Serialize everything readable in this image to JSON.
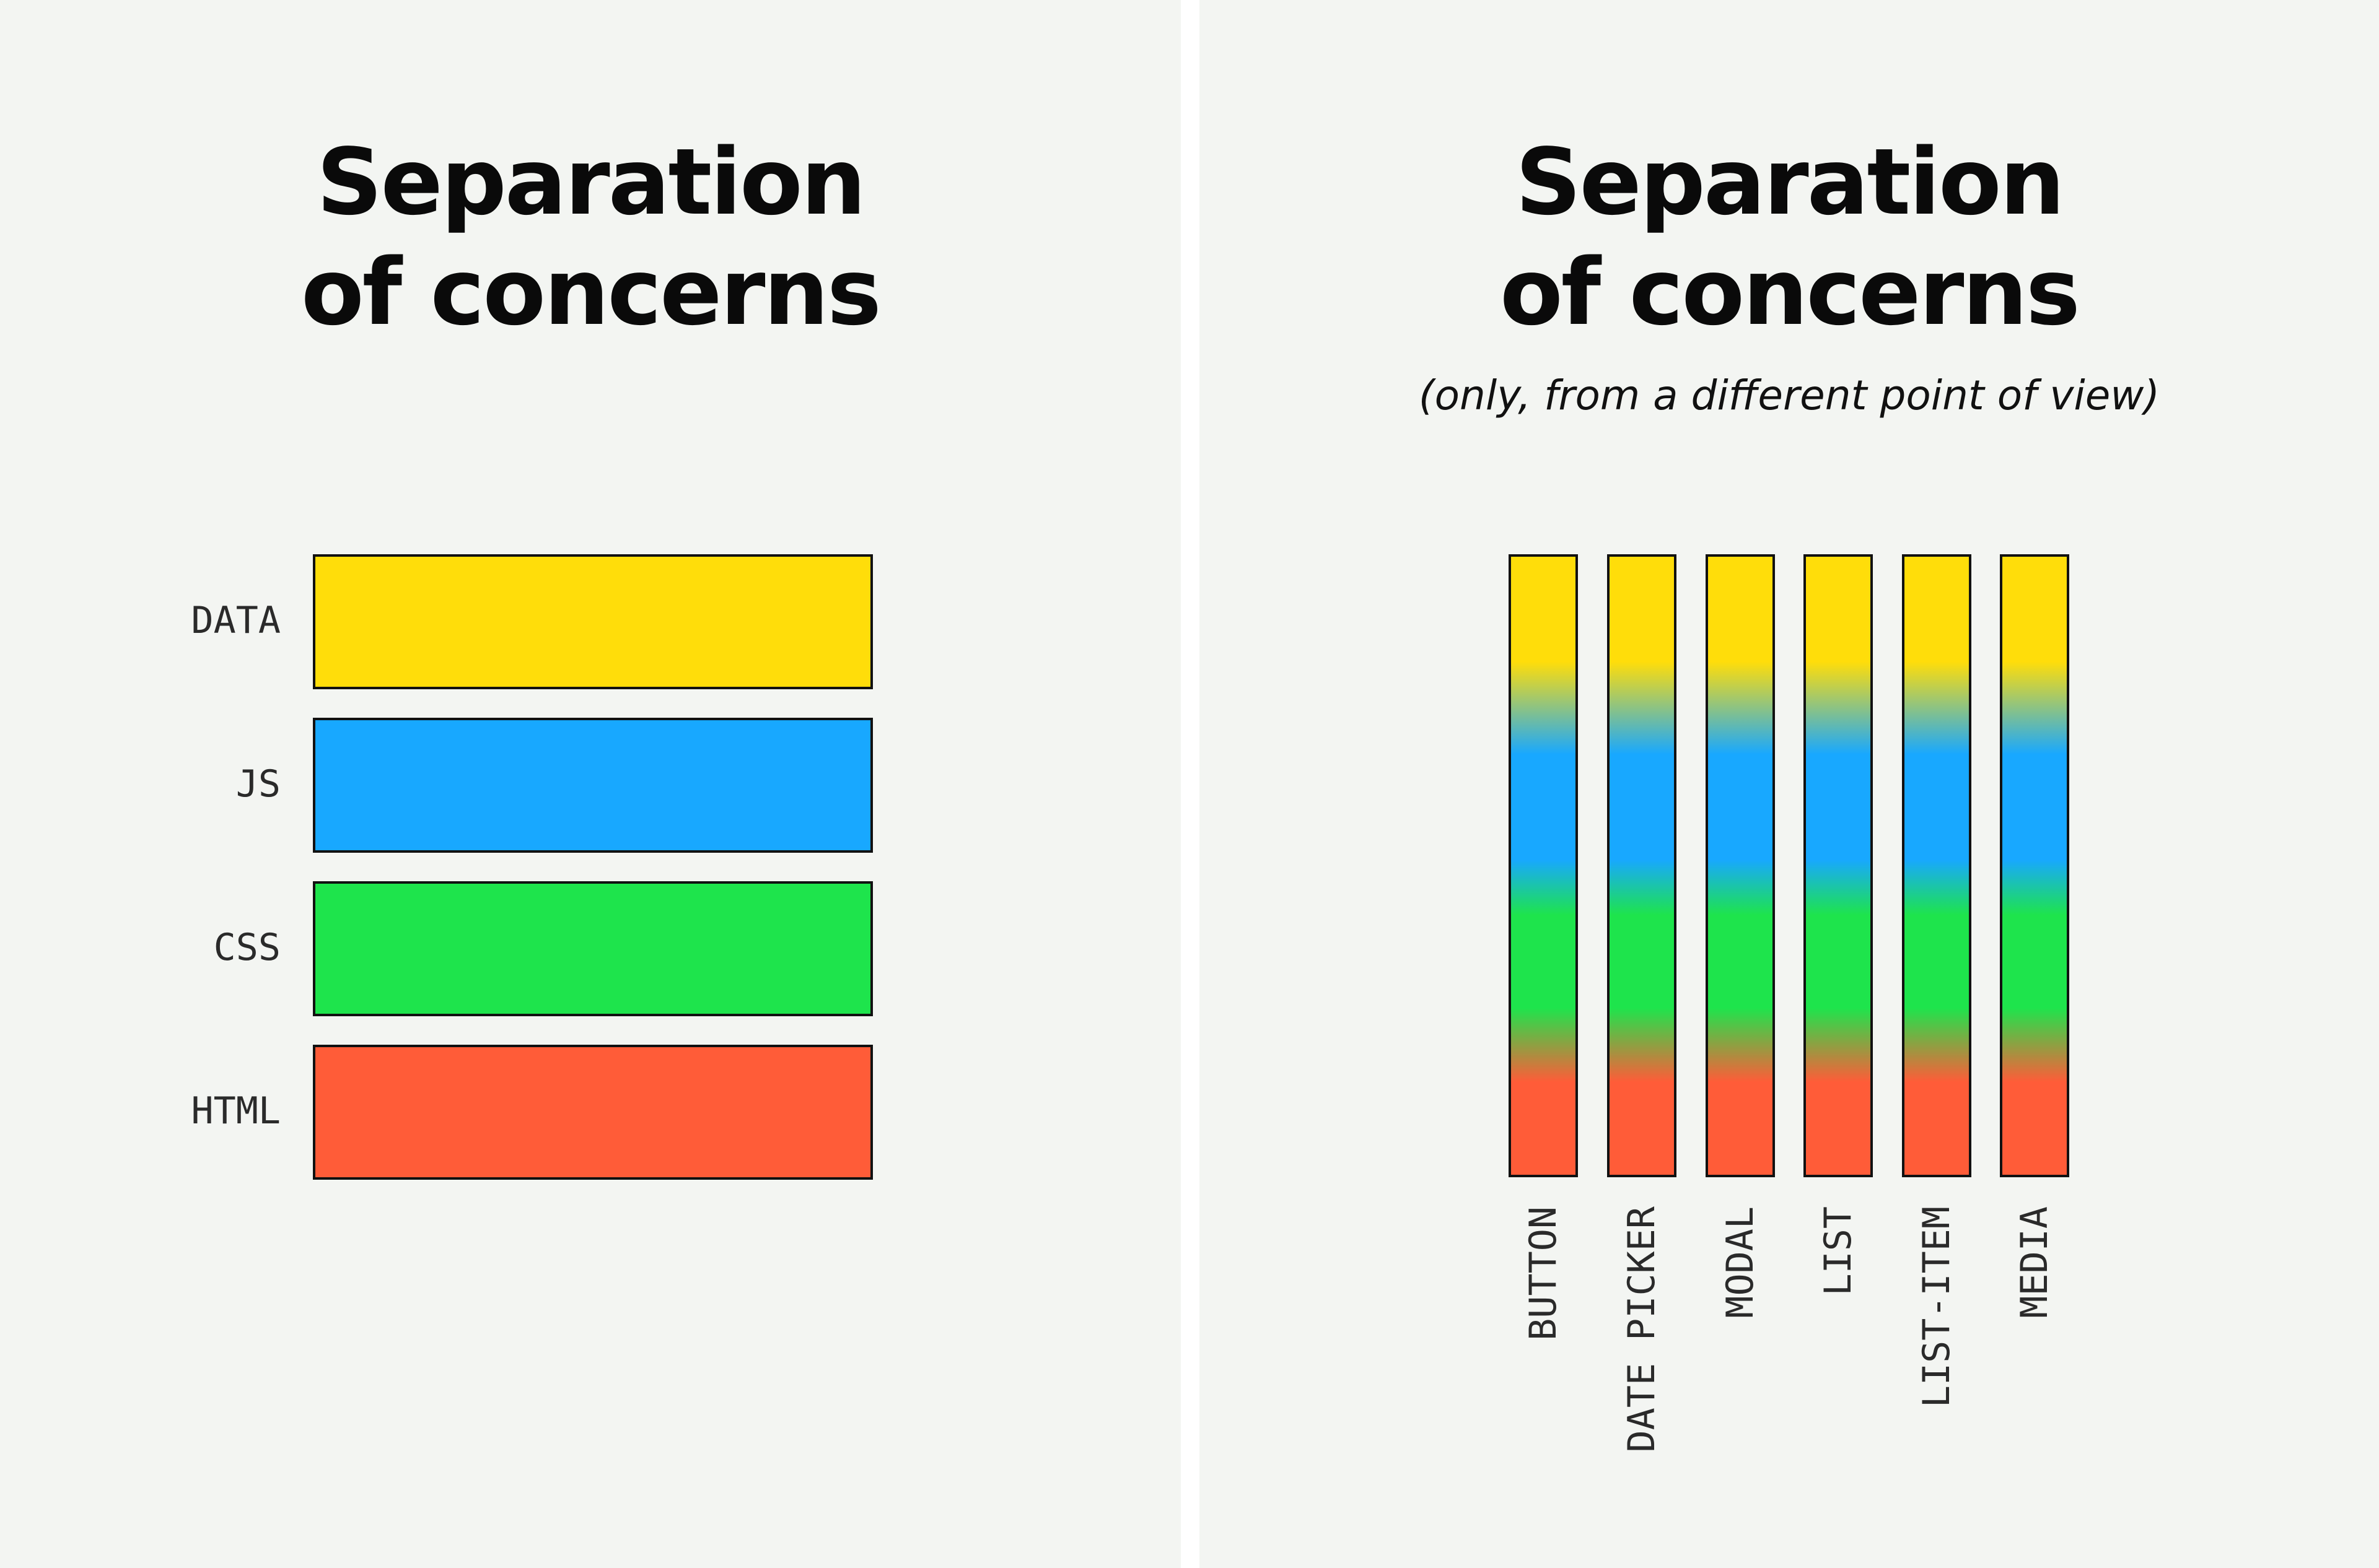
{
  "left_panel": {
    "title_line1": "Separation",
    "title_line2": "of concerns",
    "layers": [
      {
        "label": "DATA",
        "color": "#ffdd0a"
      },
      {
        "label": "JS",
        "color": "#18a8ff"
      },
      {
        "label": "CSS",
        "color": "#1ee44c"
      },
      {
        "label": "HTML",
        "color": "#ff5c38"
      }
    ]
  },
  "right_panel": {
    "title_line1": "Separation",
    "title_line2": "of concerns",
    "subtitle": "(only, from a different point of view)",
    "components": [
      "BUTTON",
      "DATE PICKER",
      "MODAL",
      "LIST",
      "LIST-ITEM",
      "MEDIA"
    ],
    "gradient_colors": [
      "#ffdd0a",
      "#18a8ff",
      "#1ee44c",
      "#ff5c38"
    ]
  }
}
